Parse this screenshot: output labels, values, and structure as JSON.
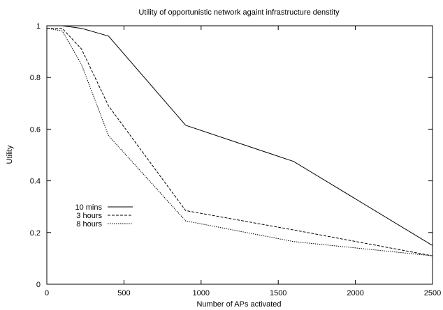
{
  "chart_data": {
    "type": "line",
    "title": "Utility of opportunistic network againt infrastructure denstity",
    "xlabel": "Number of APs activated",
    "ylabel": "Utility",
    "xlim": [
      0,
      2500
    ],
    "ylim": [
      0,
      1
    ],
    "xticks": [
      0,
      500,
      1000,
      1500,
      2000,
      2500
    ],
    "xtick_labels": [
      "0",
      "500",
      "1000",
      "1500",
      "2000",
      "2500"
    ],
    "yticks": [
      0,
      0.2,
      0.4,
      0.6,
      0.8,
      1
    ],
    "ytick_labels": [
      "0",
      "0.2",
      "0.4",
      "0.6",
      "0.8",
      "1"
    ],
    "grid": false,
    "legend_position": "bottom-left",
    "series": [
      {
        "name": "10 mins",
        "style": "solid",
        "color": "#000000",
        "x": [
          0,
          100,
          225,
          400,
          900,
          1600,
          2500
        ],
        "y": [
          1.0,
          1.0,
          0.99,
          0.96,
          0.615,
          0.475,
          0.15
        ]
      },
      {
        "name": "3 hours",
        "style": "dashed",
        "color": "#000000",
        "x": [
          0,
          100,
          225,
          400,
          900,
          1600,
          2500
        ],
        "y": [
          0.99,
          0.99,
          0.91,
          0.69,
          0.285,
          0.21,
          0.11
        ]
      },
      {
        "name": "8 hours",
        "style": "dotted",
        "color": "#000000",
        "x": [
          0,
          100,
          225,
          400,
          900,
          1600,
          2500
        ],
        "y": [
          0.99,
          0.98,
          0.85,
          0.575,
          0.245,
          0.165,
          0.11
        ]
      }
    ]
  }
}
